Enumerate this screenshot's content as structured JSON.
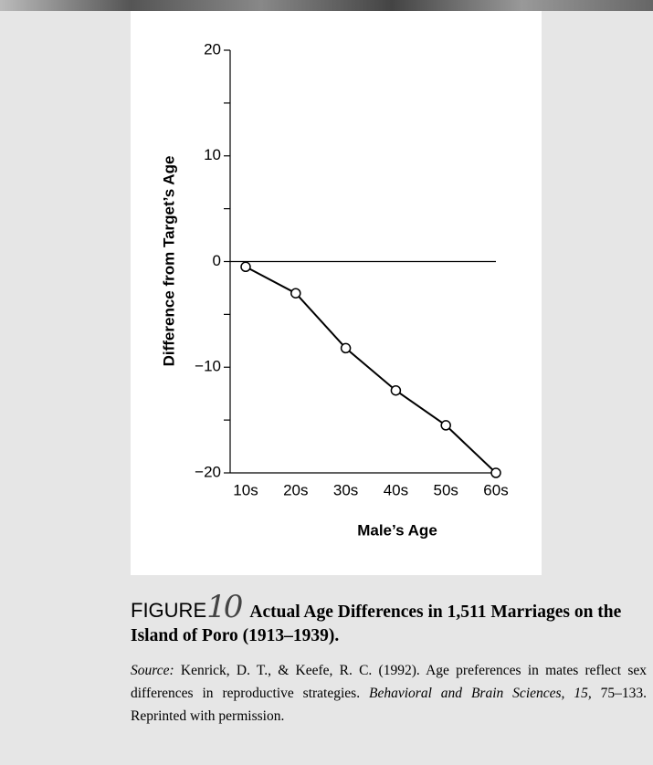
{
  "chart_data": {
    "type": "line",
    "y_label": "Difference from Target’s Age",
    "x_label": "Male’s Age",
    "categories": [
      "10s",
      "20s",
      "30s",
      "40s",
      "50s",
      "60s"
    ],
    "series": [
      {
        "name": null,
        "color": "#000000",
        "values": [
          -0.5,
          -3,
          -8.2,
          -12.2,
          -15.5,
          -20
        ]
      }
    ],
    "ylim": [
      -20,
      20
    ],
    "yticks": [
      {
        "value": -20,
        "label": "−20"
      },
      {
        "value": -15,
        "label": null
      },
      {
        "value": -10,
        "label": "−10"
      },
      {
        "value": -5,
        "label": null
      },
      0,
      {
        "value": 5,
        "label": null
      },
      10,
      {
        "value": 15,
        "label": null
      },
      20
    ],
    "zero_line": true,
    "figure_label": "FIGURE",
    "figure_number": "10",
    "title": "Actual Age Differences in 1,511 Marriages on the Island of Poro (1913–1939).",
    "source": {
      "lead": "Source:",
      "text": " Kenrick, D. T., & Keefe, R. C. (1992). Age preferences in mates reflect sex differences in reproductive strategies. ",
      "journal": "Behavioral and Brain Sciences, 15,",
      "pages": " 75–133. Reprinted with permission."
    }
  }
}
